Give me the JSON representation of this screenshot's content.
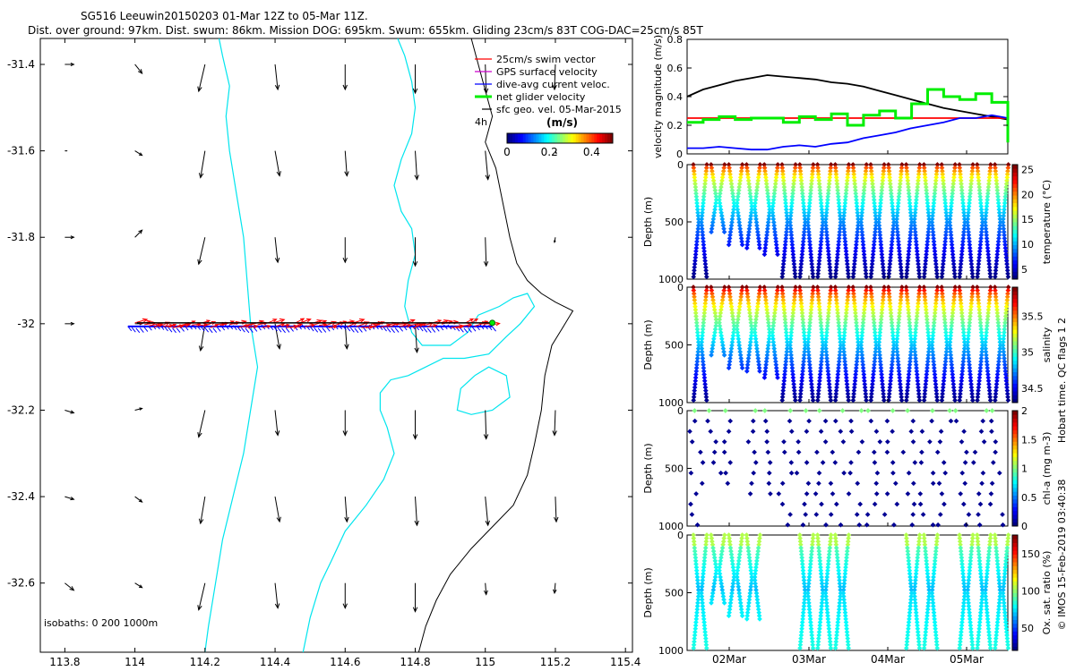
{
  "chart_data": [
    {
      "type": "map",
      "title": "SG516 Leeuwin20150203 01-Mar 12Z to 05-Mar 11Z.",
      "subtitle": "Dist. over ground: 97km. Dist. swum: 86km. Mission DOG: 695km. Swum: 655km. Gliding 23cm/s 83T COG-DAC=25cm/s 85T",
      "xticks": [
        "113.8",
        "114",
        "114.2",
        "114.4",
        "114.6",
        "114.8",
        "115",
        "115.2",
        "115.4"
      ],
      "xtick_values": [
        113.8,
        114.0,
        114.2,
        114.4,
        114.6,
        114.8,
        115.0,
        115.2,
        115.4
      ],
      "yticks": [
        "-31.4",
        "-31.6",
        "-31.8",
        "-32",
        "-32.2",
        "-32.4",
        "-32.6"
      ],
      "ytick_values": [
        -31.4,
        -31.6,
        -31.8,
        -32.0,
        -32.2,
        -32.4,
        -32.6
      ],
      "xlim": [
        113.73,
        115.42
      ],
      "ylim": [
        -32.76,
        -31.34
      ],
      "legend": {
        "entries": [
          {
            "label": "25cm/s swim vector",
            "color": "#ff0000"
          },
          {
            "label": "GPS surface velocity",
            "color": "#cc00cc"
          },
          {
            "label": "dive-avg current veloc.",
            "color": "#0000ff"
          },
          {
            "label": "net glider velocity",
            "color": "#00ee00"
          },
          {
            "label": "sfc geo. vel. 05-Mar-2015",
            "color": "#000000"
          }
        ],
        "scale_label": "4h",
        "placement": "top-right"
      },
      "colorbar": {
        "title": "(m/s)",
        "ticks": [
          "0",
          "0.2",
          "0.4"
        ],
        "tick_values": [
          0,
          0.2,
          0.4
        ],
        "range": [
          0,
          0.5
        ],
        "colormap": "jet"
      },
      "isobaths_label": "isobaths: 0   200  1000m",
      "track": {
        "lat": -32.0,
        "lon_start": 113.98,
        "lon_end": 115.02
      }
    },
    {
      "type": "line",
      "ylabel": "velocity magnitude (m/s)",
      "ylim": [
        0,
        0.8
      ],
      "yticks": [
        "0",
        "0.2",
        "0.4",
        "0.6",
        "0.8"
      ],
      "x": [
        0,
        0.5,
        1,
        1.5,
        2,
        2.5,
        3,
        3.5,
        4,
        4.5,
        5,
        5.5,
        6,
        6.5,
        7,
        7.5,
        8,
        8.5,
        9,
        9.5,
        10
      ],
      "series": [
        {
          "name": "sfc geo. vel.",
          "color": "#000000",
          "values": [
            0.4,
            0.45,
            0.48,
            0.51,
            0.53,
            0.55,
            0.54,
            0.53,
            0.52,
            0.5,
            0.49,
            0.47,
            0.44,
            0.41,
            0.38,
            0.35,
            0.32,
            0.3,
            0.28,
            0.26,
            0.24
          ]
        },
        {
          "name": "25cm/s swim vector",
          "color": "#ff0000",
          "values": [
            0.25,
            0.25,
            0.25,
            0.25,
            0.25,
            0.25,
            0.25,
            0.25,
            0.25,
            0.25,
            0.25,
            0.25,
            0.25,
            0.25,
            0.25,
            0.25,
            0.25,
            0.25,
            0.25,
            0.25,
            0.25
          ]
        },
        {
          "name": "dive-avg current veloc.",
          "color": "#0000ff",
          "values": [
            0.04,
            0.04,
            0.05,
            0.04,
            0.03,
            0.03,
            0.05,
            0.06,
            0.05,
            0.07,
            0.08,
            0.11,
            0.13,
            0.15,
            0.18,
            0.2,
            0.22,
            0.25,
            0.25,
            0.27,
            0.25
          ]
        },
        {
          "name": "net glider velocity",
          "color": "#00ee00",
          "values": [
            0.22,
            0.24,
            0.26,
            0.24,
            0.25,
            0.25,
            0.22,
            0.26,
            0.24,
            0.28,
            0.2,
            0.27,
            0.3,
            0.25,
            0.35,
            0.45,
            0.4,
            0.38,
            0.42,
            0.36,
            0.08
          ]
        }
      ]
    },
    {
      "type": "scatter-profile",
      "variable": "temperature",
      "ylabel": "Depth (m)",
      "colorbar_label": "temperature (°C)",
      "colorbar_ticks": [
        "5",
        "10",
        "15",
        "20",
        "25"
      ],
      "colorbar_range": [
        3,
        26
      ],
      "ylim": [
        1000,
        0
      ],
      "yticks": [
        "0",
        "500",
        "1000"
      ]
    },
    {
      "type": "scatter-profile",
      "variable": "salinity",
      "ylabel": "Depth (m)",
      "colorbar_label": "salinity",
      "colorbar_ticks": [
        "34.5",
        "35",
        "35.5"
      ],
      "colorbar_range": [
        34.3,
        35.9
      ],
      "ylim": [
        1000,
        0
      ],
      "yticks": [
        "0",
        "500",
        "1000"
      ]
    },
    {
      "type": "scatter-profile",
      "variable": "chl-a",
      "ylabel": "Depth (m)",
      "colorbar_label": "chl-a (mg m-3)",
      "colorbar_ticks": [
        "0",
        "0.5",
        "1",
        "1.5",
        "2"
      ],
      "colorbar_range": [
        0,
        2
      ],
      "ylim": [
        1000,
        0
      ],
      "yticks": [
        "0",
        "500",
        "1000"
      ]
    },
    {
      "type": "scatter-profile",
      "variable": "oxygen saturation",
      "ylabel": "Depth (m)",
      "colorbar_label": "Ox. sat. ratio (%)",
      "colorbar_ticks": [
        "50",
        "100",
        "150"
      ],
      "colorbar_range": [
        20,
        175
      ],
      "ylim": [
        1000,
        0
      ],
      "yticks": [
        "0",
        "500",
        "1000"
      ],
      "xticks": [
        "02Mar",
        "03Mar",
        "04Mar",
        "05Mar"
      ]
    }
  ],
  "side_text_1": "Hobart time. QC flags 1  2",
  "side_text_2": "© IMOS 15-Feb-2019 03:40:38"
}
